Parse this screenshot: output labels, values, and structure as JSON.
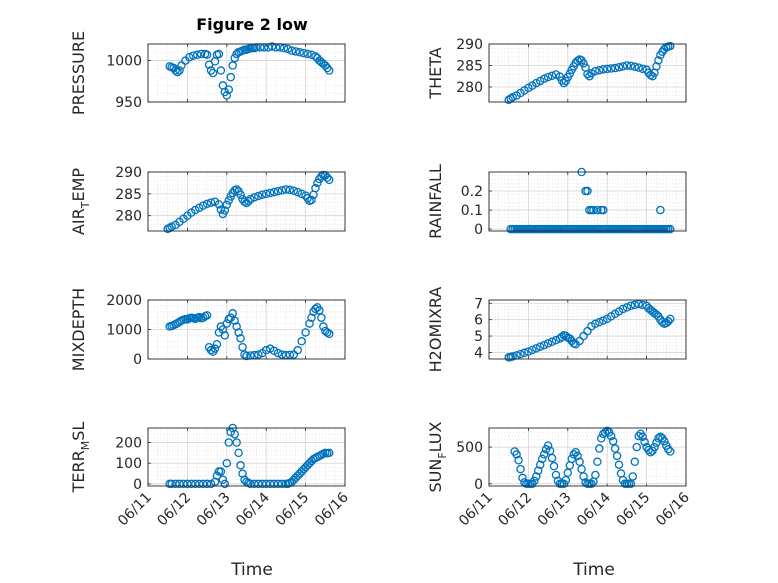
{
  "figure": {
    "title": "Figure 2 low"
  },
  "x_ticks": [
    "06/11",
    "06/12",
    "06/13",
    "06/14",
    "06/15",
    "06/16"
  ],
  "xlabel": "Time",
  "marker_color": "#0072BD",
  "chart_data": [
    {
      "type": "scatter",
      "ylabel": "PRESSURE",
      "ylim": [
        950,
        1020
      ],
      "yticks": [
        "950",
        "1000"
      ],
      "ytick_values": [
        950,
        1000
      ],
      "xlim": [
        0,
        5
      ],
      "x": [
        0.55,
        0.6,
        0.65,
        0.7,
        0.75,
        0.8,
        0.85,
        0.95,
        1.05,
        1.15,
        1.25,
        1.35,
        1.45,
        1.5,
        1.55,
        1.6,
        1.65,
        1.7,
        1.75,
        1.8,
        1.85,
        1.9,
        1.95,
        2.0,
        2.05,
        2.1,
        2.15,
        2.2,
        2.25,
        2.3,
        2.35,
        2.4,
        2.45,
        2.5,
        2.55,
        2.6,
        2.65,
        2.7,
        2.75,
        2.85,
        2.95,
        3.05,
        3.15,
        3.25,
        3.35,
        3.45,
        3.55,
        3.65,
        3.75,
        3.85,
        3.95,
        4.05,
        4.15,
        4.25,
        4.3,
        4.35,
        4.4,
        4.45,
        4.5,
        4.55,
        4.6
      ],
      "y": [
        993,
        992,
        991,
        988,
        986,
        988,
        994,
        1000,
        1004,
        1006,
        1007,
        1008,
        1008,
        1007,
        995,
        988,
        985,
        999,
        1007,
        1008,
        988,
        970,
        962,
        958,
        965,
        980,
        994,
        1003,
        1008,
        1010,
        1011,
        1012,
        1013,
        1013,
        1014,
        1015,
        1015,
        1015,
        1016,
        1016,
        1016,
        1016,
        1017,
        1016,
        1016,
        1015,
        1014,
        1012,
        1011,
        1010,
        1009,
        1008,
        1007,
        1005,
        1003,
        1000,
        998,
        996,
        994,
        991,
        988
      ]
    },
    {
      "type": "scatter",
      "ylabel": "THETA",
      "ylim": [
        276.5,
        290
      ],
      "yticks": [
        "280",
        "285",
        "290"
      ],
      "ytick_values": [
        280,
        285,
        290
      ],
      "xlim": [
        0,
        5
      ],
      "x": [
        0.5,
        0.55,
        0.6,
        0.7,
        0.8,
        0.9,
        1.0,
        1.1,
        1.2,
        1.3,
        1.4,
        1.5,
        1.6,
        1.7,
        1.8,
        1.85,
        1.9,
        1.95,
        2.0,
        2.05,
        2.1,
        2.15,
        2.2,
        2.25,
        2.3,
        2.35,
        2.4,
        2.45,
        2.5,
        2.55,
        2.6,
        2.7,
        2.8,
        2.9,
        3.0,
        3.1,
        3.2,
        3.3,
        3.4,
        3.5,
        3.6,
        3.7,
        3.8,
        3.9,
        4.0,
        4.05,
        4.1,
        4.15,
        4.2,
        4.25,
        4.3,
        4.35,
        4.4,
        4.45,
        4.5,
        4.55,
        4.6
      ],
      "y": [
        277,
        277.3,
        277.6,
        278,
        278.6,
        279.2,
        279.8,
        280.3,
        280.9,
        281.4,
        281.9,
        282.3,
        282.6,
        282.9,
        282.4,
        281.5,
        280.9,
        281.4,
        282.3,
        283.1,
        284,
        284.8,
        285.6,
        286.1,
        286.4,
        286.2,
        285.5,
        284.5,
        283,
        282.5,
        283.2,
        283.7,
        283.9,
        284.1,
        284.2,
        284.3,
        284.4,
        284.6,
        284.8,
        285,
        284.9,
        284.7,
        284.5,
        284.2,
        284,
        283.3,
        282.8,
        282.5,
        283.3,
        284.8,
        286.2,
        287.4,
        288.2,
        288.8,
        289.2,
        289.4,
        289.5
      ]
    },
    {
      "type": "scatter",
      "ylabel": "AIR_TEMP",
      "ylim": [
        276.5,
        290
      ],
      "yticks": [
        "280",
        "285",
        "290"
      ],
      "ytick_values": [
        280,
        285,
        290
      ],
      "xlim": [
        0,
        5
      ],
      "x": [
        0.5,
        0.55,
        0.6,
        0.7,
        0.8,
        0.9,
        1.0,
        1.1,
        1.2,
        1.3,
        1.4,
        1.5,
        1.6,
        1.7,
        1.8,
        1.85,
        1.9,
        1.95,
        2.0,
        2.05,
        2.1,
        2.15,
        2.2,
        2.25,
        2.3,
        2.35,
        2.4,
        2.45,
        2.5,
        2.55,
        2.6,
        2.7,
        2.8,
        2.9,
        3.0,
        3.1,
        3.2,
        3.3,
        3.4,
        3.5,
        3.6,
        3.7,
        3.8,
        3.9,
        4.0,
        4.05,
        4.1,
        4.15,
        4.2,
        4.25,
        4.3,
        4.35,
        4.4,
        4.45,
        4.5,
        4.55,
        4.6
      ],
      "y": [
        277,
        277.2,
        277.5,
        277.9,
        278.6,
        279.3,
        280,
        280.7,
        281.3,
        281.8,
        282.3,
        282.7,
        283,
        283.2,
        282.6,
        281.4,
        280.4,
        281.2,
        282.5,
        283.5,
        284.4,
        285.2,
        285.8,
        286,
        285.6,
        284.8,
        283.8,
        283.2,
        282.9,
        283.3,
        283.8,
        284.2,
        284.5,
        284.8,
        285,
        285.2,
        285.4,
        285.6,
        285.8,
        286,
        285.9,
        285.7,
        285.4,
        285,
        284.6,
        284,
        283.4,
        283.6,
        284.8,
        286.3,
        287.5,
        288.4,
        289,
        289.3,
        289.2,
        288.7,
        288.2
      ]
    },
    {
      "type": "scatter",
      "ylabel": "RAINFALL",
      "ylim": [
        -0.01,
        0.3
      ],
      "yticks": [
        "0",
        "0.1",
        "0.2"
      ],
      "ytick_values": [
        0,
        0.1,
        0.2
      ],
      "xlim": [
        0,
        5
      ],
      "x": [
        0.55,
        0.6,
        0.65,
        0.7,
        0.75,
        0.8,
        0.85,
        0.9,
        0.95,
        1.0,
        1.05,
        1.1,
        1.15,
        1.2,
        1.25,
        1.3,
        1.35,
        1.4,
        1.45,
        1.5,
        1.55,
        1.6,
        1.65,
        1.7,
        1.75,
        1.8,
        1.85,
        1.9,
        1.95,
        2.0,
        2.05,
        2.1,
        2.15,
        2.2,
        2.25,
        2.3,
        2.35,
        2.4,
        2.45,
        2.5,
        2.55,
        2.6,
        2.65,
        2.7,
        2.75,
        2.8,
        2.85,
        2.9,
        2.95,
        3.0,
        3.05,
        3.1,
        3.15,
        3.2,
        3.25,
        3.3,
        3.35,
        3.4,
        3.45,
        3.5,
        3.55,
        3.6,
        3.65,
        3.7,
        3.75,
        3.8,
        3.85,
        3.9,
        3.95,
        4.0,
        4.05,
        4.1,
        4.15,
        4.2,
        4.25,
        4.3,
        4.35,
        4.4,
        4.45,
        4.5,
        4.55,
        4.6,
        2.35,
        2.45,
        2.5,
        2.55,
        2.6,
        2.65,
        2.75,
        2.85,
        2.9,
        4.35
      ],
      "y": [
        0,
        0,
        0,
        0,
        0,
        0,
        0,
        0,
        0,
        0,
        0,
        0,
        0,
        0,
        0,
        0,
        0,
        0,
        0,
        0,
        0,
        0,
        0,
        0,
        0,
        0,
        0,
        0,
        0,
        0,
        0,
        0,
        0,
        0,
        0,
        0,
        0,
        0,
        0,
        0,
        0,
        0,
        0,
        0,
        0,
        0,
        0,
        0,
        0,
        0,
        0,
        0,
        0,
        0,
        0,
        0,
        0,
        0,
        0,
        0,
        0,
        0,
        0,
        0,
        0,
        0,
        0,
        0,
        0,
        0,
        0,
        0,
        0,
        0,
        0,
        0,
        0,
        0,
        0,
        0,
        0,
        0,
        0.3,
        0.2,
        0.2,
        0.1,
        0.1,
        0.1,
        0.1,
        0.1,
        0.1,
        0.1
      ]
    },
    {
      "type": "scatter",
      "ylabel": "MIXDEPTH",
      "ylim": [
        0,
        2000
      ],
      "yticks": [
        "0",
        "1000",
        "2000"
      ],
      "ytick_values": [
        0,
        1000,
        2000
      ],
      "xlim": [
        0,
        5
      ],
      "x": [
        0.55,
        0.6,
        0.65,
        0.7,
        0.75,
        0.8,
        0.85,
        0.9,
        0.95,
        1.0,
        1.05,
        1.1,
        1.15,
        1.2,
        1.25,
        1.3,
        1.35,
        1.4,
        1.45,
        1.5,
        1.55,
        1.6,
        1.65,
        1.7,
        1.75,
        1.8,
        1.85,
        1.9,
        1.95,
        2.0,
        2.05,
        2.1,
        2.15,
        2.2,
        2.25,
        2.3,
        2.35,
        2.4,
        2.45,
        2.5,
        2.6,
        2.7,
        2.8,
        2.9,
        3.0,
        3.1,
        3.2,
        3.3,
        3.4,
        3.5,
        3.6,
        3.7,
        3.8,
        3.9,
        4.0,
        4.1,
        4.15,
        4.2,
        4.25,
        4.3,
        4.35,
        4.4,
        4.45,
        4.5,
        4.55,
        4.6
      ],
      "y": [
        1100,
        1120,
        1150,
        1180,
        1220,
        1260,
        1300,
        1330,
        1350,
        1340,
        1380,
        1400,
        1380,
        1360,
        1400,
        1420,
        1380,
        1400,
        1450,
        1480,
        400,
        300,
        250,
        350,
        500,
        900,
        1100,
        1000,
        800,
        1200,
        1350,
        1400,
        1550,
        1300,
        1100,
        900,
        700,
        400,
        150,
        100,
        120,
        130,
        150,
        200,
        300,
        350,
        280,
        200,
        150,
        130,
        140,
        150,
        300,
        600,
        900,
        1200,
        1400,
        1600,
        1700,
        1750,
        1650,
        1400,
        1100,
        950,
        900,
        850
      ]
    },
    {
      "type": "scatter",
      "ylabel": "H2OMIXRA",
      "ylim": [
        3.6,
        7.2
      ],
      "yticks": [
        "4",
        "5",
        "6",
        "7"
      ],
      "ytick_values": [
        4,
        5,
        6,
        7
      ],
      "xlim": [
        0,
        5
      ],
      "x": [
        0.5,
        0.55,
        0.6,
        0.7,
        0.8,
        0.9,
        1.0,
        1.1,
        1.2,
        1.3,
        1.4,
        1.5,
        1.6,
        1.7,
        1.8,
        1.85,
        1.9,
        1.95,
        2.0,
        2.05,
        2.1,
        2.15,
        2.2,
        2.3,
        2.4,
        2.5,
        2.6,
        2.7,
        2.8,
        2.9,
        3.0,
        3.1,
        3.2,
        3.3,
        3.4,
        3.5,
        3.6,
        3.7,
        3.8,
        3.9,
        4.0,
        4.05,
        4.1,
        4.15,
        4.2,
        4.25,
        4.3,
        4.35,
        4.4,
        4.45,
        4.5,
        4.55,
        4.6
      ],
      "y": [
        3.7,
        3.72,
        3.75,
        3.82,
        3.9,
        3.98,
        4.05,
        4.15,
        4.25,
        4.35,
        4.45,
        4.55,
        4.65,
        4.75,
        4.85,
        4.95,
        5.05,
        5.0,
        4.9,
        4.85,
        4.7,
        4.55,
        4.5,
        4.7,
        5.0,
        5.3,
        5.6,
        5.75,
        5.85,
        5.95,
        6.05,
        6.2,
        6.35,
        6.5,
        6.65,
        6.75,
        6.85,
        6.9,
        6.95,
        6.9,
        6.85,
        6.7,
        6.6,
        6.5,
        6.4,
        6.3,
        6.2,
        6.0,
        5.85,
        5.75,
        5.8,
        5.9,
        6.05
      ]
    },
    {
      "type": "scatter",
      "ylabel": "TERR_MSL",
      "ylim": [
        -10,
        270
      ],
      "yticks": [
        "0",
        "100",
        "200"
      ],
      "ytick_values": [
        0,
        100,
        200
      ],
      "xlim": [
        0,
        5
      ],
      "x": [
        0.55,
        0.6,
        0.7,
        0.8,
        0.9,
        1.0,
        1.1,
        1.2,
        1.3,
        1.4,
        1.5,
        1.6,
        1.7,
        1.75,
        1.8,
        1.85,
        1.9,
        1.95,
        2.0,
        2.05,
        2.1,
        2.15,
        2.2,
        2.25,
        2.3,
        2.35,
        2.4,
        2.45,
        2.5,
        2.55,
        2.6,
        2.7,
        2.8,
        2.9,
        3.0,
        3.1,
        3.2,
        3.3,
        3.4,
        3.5,
        3.55,
        3.6,
        3.65,
        3.7,
        3.75,
        3.8,
        3.85,
        3.9,
        3.95,
        4.0,
        4.05,
        4.1,
        4.15,
        4.2,
        4.25,
        4.3,
        4.35,
        4.4,
        4.45,
        4.5,
        4.55,
        4.6
      ],
      "y": [
        0,
        0,
        0,
        0,
        0,
        0,
        0,
        0,
        0,
        0,
        0,
        0,
        10,
        40,
        60,
        60,
        20,
        0,
        100,
        200,
        250,
        270,
        240,
        200,
        150,
        90,
        50,
        20,
        10,
        5,
        0,
        0,
        0,
        0,
        0,
        0,
        0,
        0,
        0,
        0,
        0,
        5,
        10,
        20,
        30,
        40,
        50,
        60,
        70,
        80,
        90,
        100,
        110,
        120,
        125,
        130,
        135,
        140,
        145,
        150,
        148,
        150
      ]
    },
    {
      "type": "scatter",
      "ylabel": "SUN_FLUX",
      "ylim": [
        -30,
        760
      ],
      "yticks": [
        "0",
        "500"
      ],
      "ytick_values": [
        0,
        500
      ],
      "xlim": [
        0,
        5
      ],
      "x": [
        0.65,
        0.7,
        0.75,
        0.8,
        0.85,
        0.9,
        0.95,
        1.0,
        1.05,
        1.1,
        1.15,
        1.2,
        1.25,
        1.3,
        1.35,
        1.4,
        1.45,
        1.5,
        1.55,
        1.6,
        1.65,
        1.7,
        1.75,
        1.8,
        1.85,
        1.9,
        1.95,
        2.0,
        2.05,
        2.1,
        2.15,
        2.2,
        2.25,
        2.3,
        2.35,
        2.4,
        2.45,
        2.5,
        2.55,
        2.6,
        2.65,
        2.7,
        2.75,
        2.8,
        2.85,
        2.9,
        2.95,
        3.0,
        3.05,
        3.1,
        3.15,
        3.2,
        3.25,
        3.3,
        3.35,
        3.4,
        3.45,
        3.5,
        3.55,
        3.6,
        3.65,
        3.7,
        3.75,
        3.8,
        3.85,
        3.9,
        3.95,
        4.0,
        4.05,
        4.1,
        4.15,
        4.2,
        4.25,
        4.3,
        4.35,
        4.4,
        4.45,
        4.5,
        4.55,
        4.6
      ],
      "y": [
        440,
        400,
        320,
        200,
        80,
        20,
        0,
        0,
        0,
        0,
        40,
        100,
        180,
        260,
        340,
        400,
        470,
        520,
        450,
        350,
        240,
        120,
        40,
        0,
        0,
        0,
        50,
        150,
        250,
        340,
        400,
        430,
        380,
        300,
        200,
        100,
        20,
        0,
        0,
        0,
        30,
        120,
        300,
        480,
        620,
        680,
        700,
        720,
        700,
        650,
        580,
        480,
        380,
        260,
        140,
        50,
        0,
        0,
        0,
        0,
        100,
        300,
        500,
        650,
        680,
        640,
        570,
        500,
        460,
        430,
        450,
        500,
        560,
        620,
        640,
        620,
        580,
        520,
        470,
        440
      ]
    }
  ]
}
